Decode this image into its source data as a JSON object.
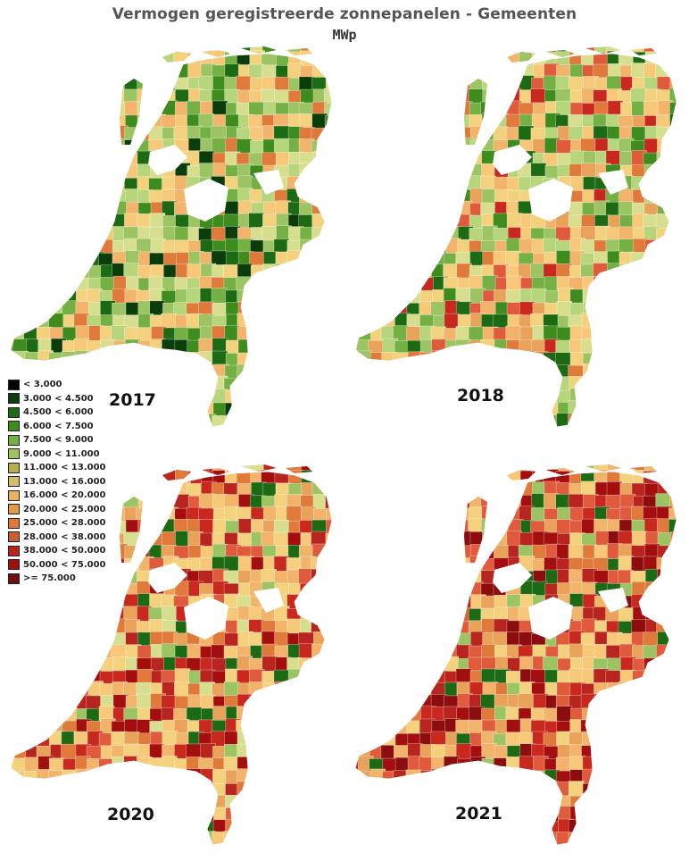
{
  "title": "Vermogen geregistreerde zonnepanelen - Gemeenten",
  "unit": "MWp",
  "legend": [
    {
      "label": "< 3.000",
      "color": "#000000"
    },
    {
      "label": "3.000 < 4.500",
      "color": "#0b3d0b"
    },
    {
      "label": "4.500 < 6.000",
      "color": "#1d6a14"
    },
    {
      "label": "6.000 < 7.500",
      "color": "#3f8c1e"
    },
    {
      "label": "7.500 < 9.000",
      "color": "#74b043"
    },
    {
      "label": "9.000 < 11.000",
      "color": "#9cc463"
    },
    {
      "label": "11.000 < 13.000",
      "color": "#b5ad4e"
    },
    {
      "label": "13.000 < 16.000",
      "color": "#d2bd70"
    },
    {
      "label": "16.000 < 20.000",
      "color": "#e8b061"
    },
    {
      "label": "20.000 < 25.000",
      "color": "#e3994a"
    },
    {
      "label": "25.000 < 28.000",
      "color": "#e07a3b"
    },
    {
      "label": "28.000 < 38.000",
      "color": "#c76036"
    },
    {
      "label": "38.000 < 50.000",
      "color": "#b8241e"
    },
    {
      "label": "50.000 < 75.000",
      "color": "#a30e0e"
    },
    {
      "label": ">= 75.000",
      "color": "#6e0f10"
    }
  ],
  "maps": [
    {
      "year": "2017",
      "palette": [
        "#9cc463",
        "#b7d57a",
        "#d7df8f",
        "#f4d27d",
        "#f8c879",
        "#74b043",
        "#3f8c1e",
        "#1d6a14",
        "#f2b46a",
        "#e07a3b",
        "#0b3d0b"
      ]
    },
    {
      "year": "2018",
      "palette": [
        "#b7d57a",
        "#f4d27d",
        "#f8c879",
        "#9cc463",
        "#f2b46a",
        "#e8a25a",
        "#e07a3b",
        "#d7df8f",
        "#74b043",
        "#e05a3c",
        "#3f8c1e",
        "#1d6a14",
        "#c8281e"
      ]
    },
    {
      "year": "2020",
      "palette": [
        "#f4d27d",
        "#f2b46a",
        "#e07a3b",
        "#e05a3c",
        "#c8281e",
        "#f8c879",
        "#b8241e",
        "#a30e0e",
        "#e8a25a",
        "#d7df8f",
        "#9cc463",
        "#1d6a14"
      ]
    },
    {
      "year": "2021",
      "palette": [
        "#e05a3c",
        "#b8241e",
        "#a30e0e",
        "#8b0d0d",
        "#e07a3b",
        "#f2b46a",
        "#f4d27d",
        "#c8281e",
        "#e8a25a",
        "#f8c879",
        "#9cc463",
        "#1d6a14"
      ]
    }
  ]
}
